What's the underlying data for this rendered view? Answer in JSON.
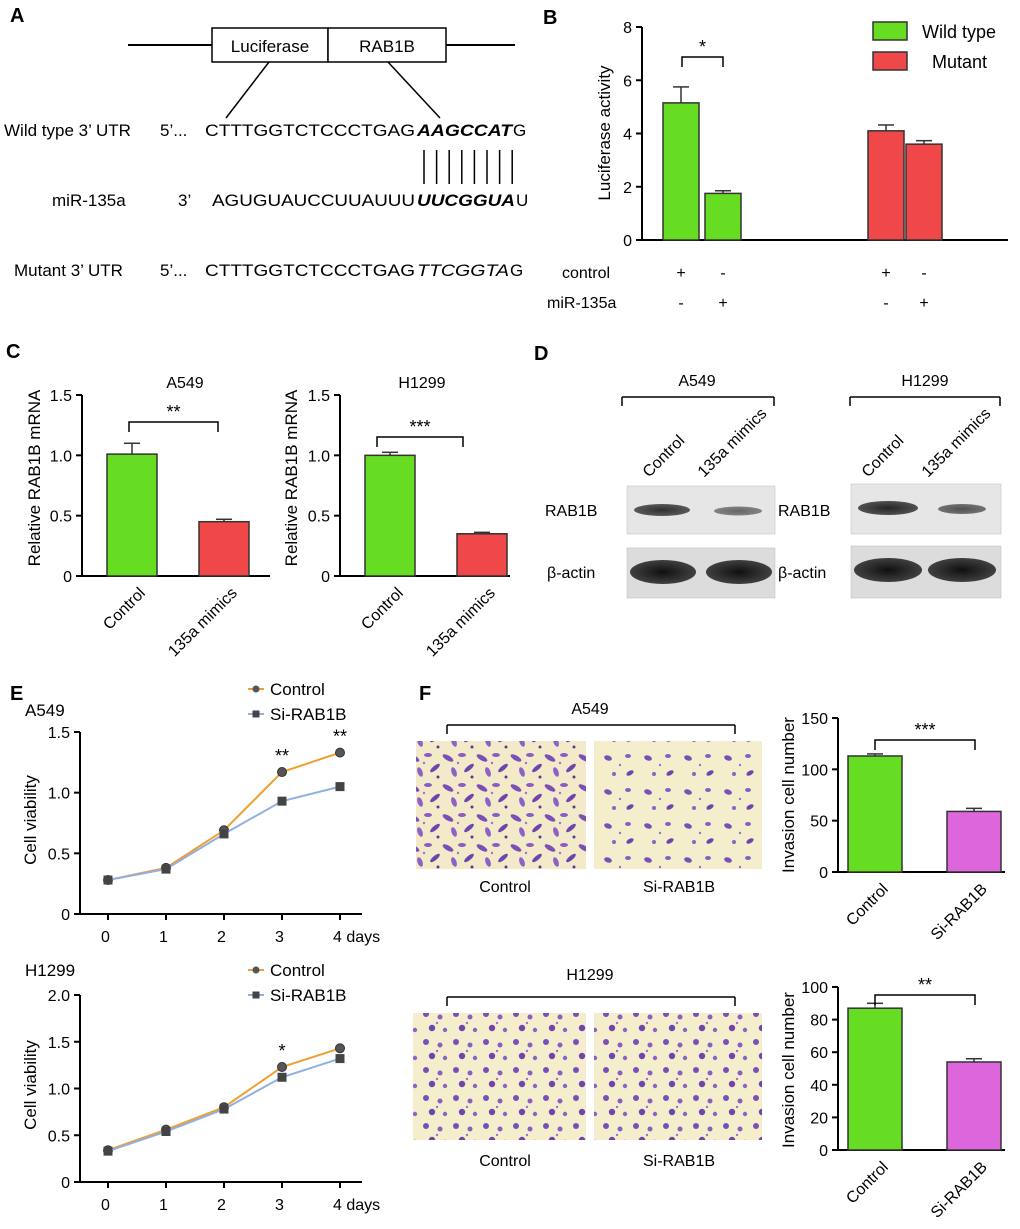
{
  "panels": {
    "A": "A",
    "B": "B",
    "C": "C",
    "D": "D",
    "E": "E",
    "F": "F"
  },
  "panelA": {
    "box_luciferase": "Luciferase",
    "box_rab1b": "RAB1B",
    "wt_label": "Wild type 3’ UTR",
    "wt_prefix": "5’...",
    "wt_seq_plain": "CTTTGGTCTCCCTGAG",
    "wt_seq_bold": "AAGCCAT",
    "wt_seq_end": "G",
    "mir_label": "miR-135a",
    "mir_prefix": "3’",
    "mir_seq_plain": "AGUGUAUCCUUAUUU",
    "mir_seq_bold": "UUCGGUA",
    "mir_seq_end": "U",
    "mut_label": "Mutant 3’ UTR",
    "mut_prefix": "5’...",
    "mut_seq_plain": "CTTTGGTCTCCCTGAG",
    "mut_seq_italic": "TTCGGTA",
    "mut_seq_end": "G"
  },
  "panelD": {
    "cell_a549": "A549",
    "cell_h1299": "H1299",
    "lane_control": "Control",
    "lane_mimics": "135a mimics",
    "rab1b": "RAB1B",
    "actin": "β-actin"
  },
  "panelF": {
    "a549": "A549",
    "h1299": "H1299",
    "control": "Control",
    "si": "Si-RAB1B"
  },
  "chart_data": [
    {
      "id": "B",
      "type": "bar",
      "ylabel": "Luciferase activity",
      "ylim": [
        0,
        8
      ],
      "yticks": [
        0,
        2,
        4,
        6,
        8
      ],
      "legend": [
        "Wild type",
        "Mutant"
      ],
      "colors": {
        "Wild type": "#66dd22",
        "Mutant": "#f04848"
      },
      "rows": [
        {
          "label": "control",
          "marks": [
            "+",
            "-",
            "+",
            "-"
          ]
        },
        {
          "label": "miR-135a",
          "marks": [
            "-",
            "+",
            "-",
            "+"
          ]
        }
      ],
      "bars": [
        {
          "series": "Wild type",
          "value": 5.15,
          "err": 0.6
        },
        {
          "series": "Wild type",
          "value": 1.75,
          "err": 0.1
        },
        {
          "series": "Mutant",
          "value": 4.1,
          "err": 0.22
        },
        {
          "series": "Mutant",
          "value": 3.6,
          "err": 0.13
        }
      ],
      "significance": "*"
    },
    {
      "id": "C1",
      "type": "bar",
      "title": "A549",
      "ylabel": "Relative RAB1B mRNA",
      "ylim": [
        0,
        1.5
      ],
      "yticks": [
        "0",
        "0.5",
        "1.0",
        "1.5"
      ],
      "categories": [
        "Control",
        "135a mimics"
      ],
      "values": [
        1.01,
        0.45
      ],
      "errors": [
        0.09,
        0.02
      ],
      "colors": [
        "#66dd22",
        "#f04848"
      ],
      "significance": "**"
    },
    {
      "id": "C2",
      "type": "bar",
      "title": "H1299",
      "ylabel": "Relative RAB1B mRNA",
      "ylim": [
        0,
        1.5
      ],
      "yticks": [
        "0",
        "0.5",
        "1.0",
        "1.5"
      ],
      "categories": [
        "Control",
        "135a mimics"
      ],
      "values": [
        1.0,
        0.35
      ],
      "errors": [
        0.025,
        0.012
      ],
      "colors": [
        "#66dd22",
        "#f04848"
      ],
      "significance": "***"
    },
    {
      "id": "E1",
      "type": "line",
      "title": "A549",
      "ylabel": "Cell viability",
      "ylim": [
        0,
        1.5
      ],
      "yticks": [
        "0",
        "0.5",
        "1.0",
        "1.5"
      ],
      "x": [
        0,
        1,
        2,
        3,
        4
      ],
      "xticks": [
        "0",
        "1",
        "2",
        "3",
        "4 days"
      ],
      "series": [
        {
          "name": "Control",
          "values": [
            0.28,
            0.38,
            0.69,
            1.17,
            1.33
          ],
          "color": "#f0a030"
        },
        {
          "name": "Si-RAB1B",
          "values": [
            0.28,
            0.37,
            0.66,
            0.93,
            1.05
          ],
          "color": "#8fb0e0"
        }
      ],
      "errors": [
        0,
        0,
        0.03,
        0.01,
        0.03
      ],
      "significance": {
        "3": "**",
        "4": "**"
      }
    },
    {
      "id": "E2",
      "type": "line",
      "title": "H1299",
      "ylabel": "Cell viability",
      "ylim": [
        0,
        2.0
      ],
      "yticks": [
        "0",
        "0.5",
        "1.0",
        "1.5",
        "2.0"
      ],
      "x": [
        0,
        1,
        2,
        3,
        4
      ],
      "xticks": [
        "0",
        "1",
        "2",
        "3",
        "4 days"
      ],
      "series": [
        {
          "name": "Control",
          "values": [
            0.34,
            0.56,
            0.8,
            1.23,
            1.43
          ],
          "color": "#f0a030"
        },
        {
          "name": "Si-RAB1B",
          "values": [
            0.33,
            0.54,
            0.78,
            1.12,
            1.32
          ],
          "color": "#8fb0e0"
        }
      ],
      "errors": [
        0,
        0.02,
        0.04,
        0.02,
        0.02
      ],
      "significance": {
        "3": "*"
      }
    },
    {
      "id": "F1",
      "type": "bar",
      "ylabel": "Invasion cell number",
      "ylim": [
        0,
        150
      ],
      "yticks": [
        0,
        50,
        100,
        150
      ],
      "categories": [
        "Control",
        "Si-RAB1B"
      ],
      "values": [
        113,
        59
      ],
      "errors": [
        2,
        3
      ],
      "colors": [
        "#66dd22",
        "#dd66dd"
      ],
      "significance": "***"
    },
    {
      "id": "F2",
      "type": "bar",
      "ylabel": "Invasion cell number",
      "ylim": [
        0,
        100
      ],
      "yticks": [
        0,
        20,
        40,
        60,
        80,
        100
      ],
      "categories": [
        "Control",
        "Si-RAB1B"
      ],
      "values": [
        87,
        54
      ],
      "errors": [
        3,
        2
      ],
      "colors": [
        "#66dd22",
        "#dd66dd"
      ],
      "significance": "**"
    }
  ]
}
